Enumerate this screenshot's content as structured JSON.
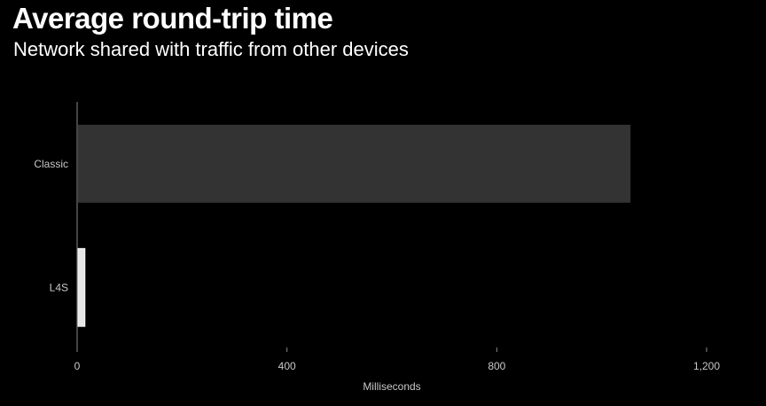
{
  "title": "Average round-trip time",
  "subtitle": "Network shared with traffic from other devices",
  "chart_data": {
    "type": "bar",
    "orientation": "horizontal",
    "title": "Average round-trip time",
    "subtitle": "Network shared with traffic from other devices",
    "categories": [
      "Classic",
      "L4S"
    ],
    "values": [
      1055,
      15
    ],
    "xlabel": "Milliseconds",
    "ylabel": "",
    "xlim": [
      0,
      1200
    ],
    "xticks": [
      0,
      400,
      800,
      1200
    ],
    "xtick_labels": [
      "0",
      "400",
      "800",
      "1,200"
    ],
    "grid": false,
    "bar_colors": [
      "#333333",
      "#e6e6e6"
    ],
    "background": "#000000"
  }
}
